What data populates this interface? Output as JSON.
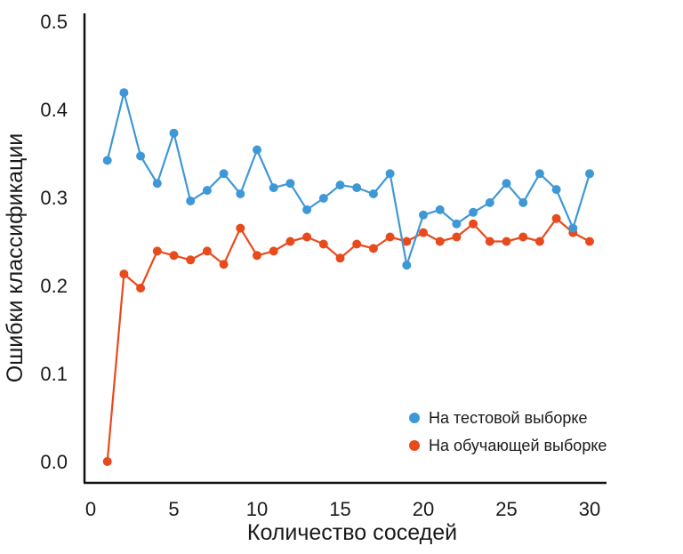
{
  "chart_data": {
    "type": "line",
    "title": "",
    "xlabel": "Количество соседей",
    "ylabel": "Ошибки классификации",
    "xlim": [
      0,
      31.5
    ],
    "ylim": [
      0,
      0.5
    ],
    "xticks": [
      0,
      5,
      10,
      15,
      20,
      25,
      30
    ],
    "yticks": [
      0.0,
      0.1,
      0.2,
      0.3,
      0.4,
      0.5
    ],
    "xtick_labels": [
      "0",
      "5",
      "10",
      "15",
      "20",
      "25",
      "30"
    ],
    "ytick_labels": [
      "0.0",
      "0.1",
      "0.2",
      "0.3",
      "0.4",
      "0.5"
    ],
    "grid": false,
    "legend_position": "lower-right",
    "x": [
      1,
      2,
      3,
      4,
      5,
      6,
      7,
      8,
      9,
      10,
      11,
      12,
      13,
      14,
      15,
      16,
      17,
      18,
      19,
      20,
      21,
      22,
      23,
      24,
      25,
      26,
      27,
      28,
      29,
      30
    ],
    "series": [
      {
        "name": "На тестовой выборке",
        "color": "#3f98d6",
        "values": [
          0.342,
          0.419,
          0.347,
          0.316,
          0.373,
          0.296,
          0.308,
          0.327,
          0.304,
          0.354,
          0.311,
          0.316,
          0.286,
          0.299,
          0.314,
          0.311,
          0.304,
          0.327,
          0.223,
          0.28,
          0.286,
          0.27,
          0.283,
          0.294,
          0.316,
          0.294,
          0.327,
          0.309,
          0.265,
          0.327
        ]
      },
      {
        "name": "На обучающей выборке",
        "color": "#e84a1c",
        "values": [
          0.0,
          0.213,
          0.197,
          0.239,
          0.234,
          0.229,
          0.239,
          0.224,
          0.265,
          0.234,
          0.239,
          0.25,
          0.255,
          0.247,
          0.231,
          0.247,
          0.242,
          0.255,
          0.25,
          0.26,
          0.25,
          0.255,
          0.27,
          0.25,
          0.25,
          0.255,
          0.25,
          0.276,
          0.26,
          0.25
        ]
      }
    ]
  }
}
